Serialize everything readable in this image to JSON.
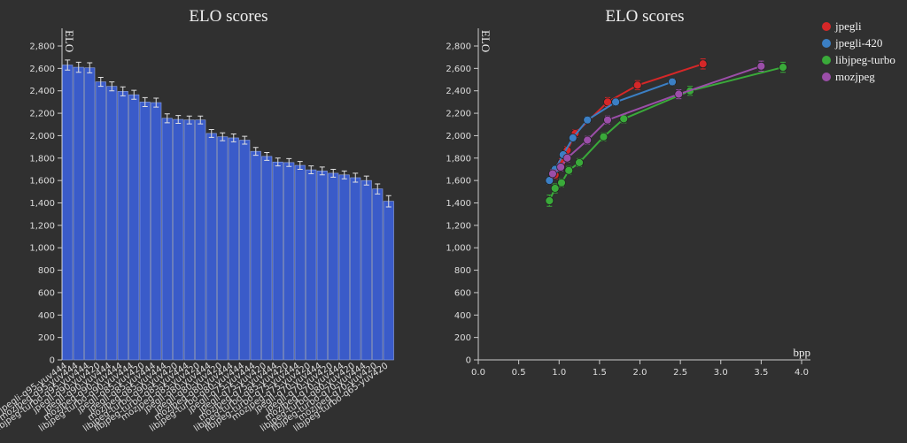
{
  "chart_data": [
    {
      "type": "bar",
      "title": "ELO scores",
      "ylabel": "ELO",
      "color": "#3a5bc9",
      "categories": [
        "jpegli-q95-yuv444",
        "mozjpeg-q95-yuv444",
        "libjpeg-turbo-q95-yuv444",
        "jpegli-q90-yuv420",
        "jpegli-q90-yuv444",
        "mozjpeg-q90-yuv444",
        "libjpeg-turbo-q90-yuv444",
        "jpegli-q85-yuv420",
        "jpegli-q85-yuv444",
        "mozjpeg-q85-yuv444",
        "libjpeg-turbo-q90-yuv420",
        "libjpeg-turbo-q85-yuv444",
        "mozjpeg-q85-yuv420",
        "jpegli-q80-yuv444",
        "jpegli-q80-yuv420",
        "mozjpeg-q80-yuv444",
        "libjpeg-turbo-q80-yuv444",
        "jpegli-q75-yuv444",
        "jpegli-q75-yuv420",
        "mozjpeg-q75-yuv444",
        "libjpeg-turbo-q85-yuv420",
        "libjpeg-turbo-q75-yuv444",
        "mozjpeg-q75-yuv420",
        "jpegli-q70-yuv444",
        "jpegli-q70-yuv420",
        "mozjpeg-q70-yuv444",
        "libjpeg-turbo-q80-yuv420",
        "libjpeg-turbo-q70-yuv444",
        "mozjpeg-q70-yuv420",
        "libjpeg-turbo-q65-yuv420"
      ],
      "values": [
        2630,
        2610,
        2605,
        2480,
        2440,
        2395,
        2365,
        2300,
        2295,
        2155,
        2145,
        2140,
        2140,
        2020,
        1990,
        1980,
        1960,
        1860,
        1815,
        1765,
        1760,
        1735,
        1695,
        1685,
        1665,
        1650,
        1625,
        1600,
        1525,
        1415
      ],
      "errors": [
        45,
        45,
        45,
        40,
        40,
        40,
        40,
        40,
        40,
        40,
        35,
        35,
        35,
        35,
        35,
        35,
        35,
        35,
        35,
        35,
        35,
        35,
        35,
        35,
        35,
        35,
        40,
        40,
        45,
        50
      ],
      "ylim": [
        0,
        2800
      ],
      "yticks": [
        0,
        200,
        400,
        600,
        800,
        {
          "value": 1000,
          "label": "1,000"
        },
        {
          "value": 1200,
          "label": "1,200"
        },
        {
          "value": 1400,
          "label": "1,400"
        },
        {
          "value": 1600,
          "label": "1,600"
        },
        {
          "value": 1800,
          "label": "1,800"
        },
        {
          "value": 2000,
          "label": "2,000"
        },
        {
          "value": 2200,
          "label": "2,200"
        },
        {
          "value": 2400,
          "label": "2,400"
        },
        {
          "value": 2600,
          "label": "2,600"
        },
        {
          "value": 2800,
          "label": "2,800"
        }
      ]
    },
    {
      "type": "line",
      "title": "ELO scores",
      "ylabel": "ELO",
      "xlabel": "bpp",
      "legend": "top-right",
      "series": [
        {
          "name": "jpegli",
          "color": "#d62728",
          "x": [
            0.95,
            1.03,
            1.1,
            1.2,
            1.6,
            1.97,
            2.78
          ],
          "values": [
            1650,
            1760,
            1870,
            2020,
            2300,
            2450,
            2640
          ],
          "errors": [
            35,
            35,
            35,
            35,
            40,
            40,
            45
          ]
        },
        {
          "name": "jpegli-420",
          "color": "#3b7fc4",
          "x": [
            0.88,
            0.95,
            1.05,
            1.17,
            1.35,
            1.7,
            2.4
          ],
          "values": [
            1600,
            1700,
            1830,
            1980,
            2140,
            2300,
            2480
          ],
          "errors": [
            30,
            30,
            30,
            30,
            30,
            30,
            30
          ]
        },
        {
          "name": "libjpeg-turbo",
          "color": "#3aaa3a",
          "x": [
            0.88,
            0.95,
            1.03,
            1.12,
            1.25,
            1.55,
            1.8,
            2.62,
            3.77
          ],
          "values": [
            1420,
            1530,
            1580,
            1690,
            1760,
            1990,
            2150,
            2400,
            2610
          ],
          "errors": [
            50,
            40,
            35,
            35,
            35,
            35,
            35,
            40,
            45
          ]
        },
        {
          "name": "mozjpeg",
          "color": "#9b4ea8",
          "x": [
            0.92,
            1.02,
            1.1,
            1.35,
            1.6,
            2.48,
            3.5
          ],
          "values": [
            1660,
            1720,
            1800,
            1960,
            2140,
            2370,
            2620
          ],
          "errors": [
            35,
            35,
            35,
            35,
            35,
            40,
            45
          ]
        }
      ],
      "xlim": [
        0,
        4
      ],
      "xticks": [
        {
          "value": 0,
          "label": "0.0"
        },
        0.5,
        {
          "value": 1,
          "label": "1.0"
        },
        1.5,
        {
          "value": 2,
          "label": "2.0"
        },
        2.5,
        {
          "value": 3,
          "label": "3.0"
        },
        3.5,
        {
          "value": 4,
          "label": "4.0"
        }
      ],
      "ylim": [
        0,
        2800
      ],
      "yticks": [
        0,
        200,
        400,
        600,
        800,
        {
          "value": 1000,
          "label": "1,000"
        },
        {
          "value": 1200,
          "label": "1,200"
        },
        {
          "value": 1400,
          "label": "1,400"
        },
        {
          "value": 1600,
          "label": "1,600"
        },
        {
          "value": 1800,
          "label": "1,800"
        },
        {
          "value": 2000,
          "label": "2,000"
        },
        {
          "value": 2200,
          "label": "2,200"
        },
        {
          "value": 2400,
          "label": "2,400"
        },
        {
          "value": 2600,
          "label": "2,600"
        },
        {
          "value": 2800,
          "label": "2,800"
        }
      ]
    }
  ]
}
